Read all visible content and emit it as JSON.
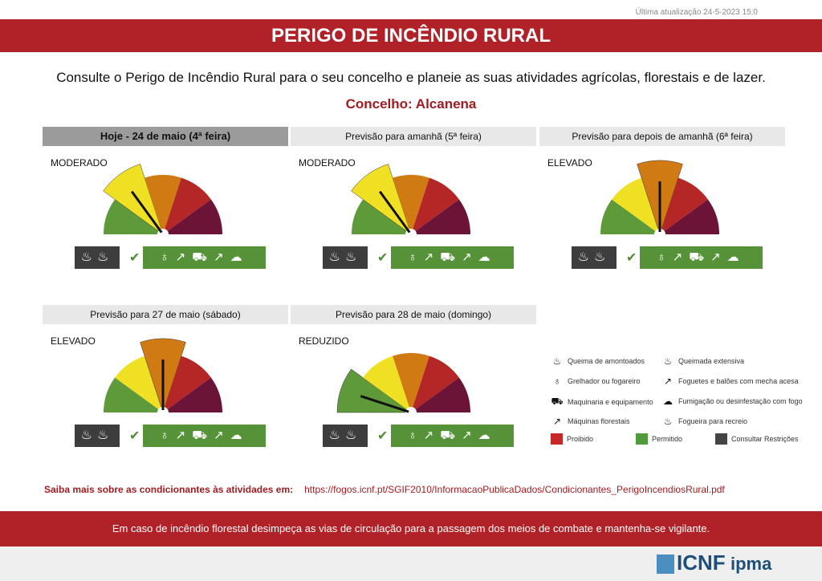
{
  "last_update": "Última atualização 24-5-2023 15:0",
  "title": "PERIGO DE INCÊNDIO RURAL",
  "intro": "Consulte o Perigo de Incêndio Rural para o seu concelho e planeie as suas atividades agrícolas, florestais e de lazer.",
  "concelho": "Concelho: Alcanena",
  "level_colors": [
    "#5e9a3a",
    "#f0e024",
    "#d07a14",
    "#b52627",
    "#6c1338"
  ],
  "forecasts": [
    {
      "header": "Hoje - 24 de maio (4ª feira)",
      "level": "MODERADO",
      "level_index": 1
    },
    {
      "header": "Previsão para amanhã (5ª feira)",
      "level": "MODERADO",
      "level_index": 1
    },
    {
      "header": "Previsão para depois de amanhã (6ª feira)",
      "level": "ELEVADO",
      "level_index": 2
    },
    {
      "header": "Previsão para 27 de maio (sábado)",
      "level": "ELEVADO",
      "level_index": 2
    },
    {
      "header": "Previsão para 28 de maio (domingo)",
      "level": "REDUZIDO",
      "level_index": 0
    }
  ],
  "activity_icons": {
    "restricted": [
      "queimada-icon",
      "fogueira-icon"
    ],
    "allowed": [
      "grelhador-icon",
      "foguete-icon",
      "maquinaria-icon",
      "maquinas-florestais-icon",
      "fumigacao-icon"
    ]
  },
  "legend": {
    "items": [
      "Queima de amontoados",
      "Queimada extensiva",
      "Grelhador ou fogareiro",
      "Foguetes e balões com mecha acesa",
      "Maquinaria e equipamento",
      "Fumigação ou desinfestação com fogo",
      "Máquinas florestais",
      "Fogueira para recreio"
    ],
    "colors": [
      {
        "label": "Proibido",
        "color": "#c62828"
      },
      {
        "label": "Permitido",
        "color": "#4f9a3c"
      },
      {
        "label": "Consultar Restrições",
        "color": "#444444"
      }
    ]
  },
  "more_label": "Saiba mais sobre as condicionantes às atividades em:",
  "more_link": "https://fogos.icnf.pt/SGIF2010/InformacaoPublicaDados/Condicionantes_PerigoIncendiosRural.pdf",
  "footer": "Em caso de incêndio florestal desimpeça as vias de circulação para a passagem dos meios de combate e mantenha-se vigilante.",
  "logos": [
    "ICNF",
    "ipma"
  ]
}
